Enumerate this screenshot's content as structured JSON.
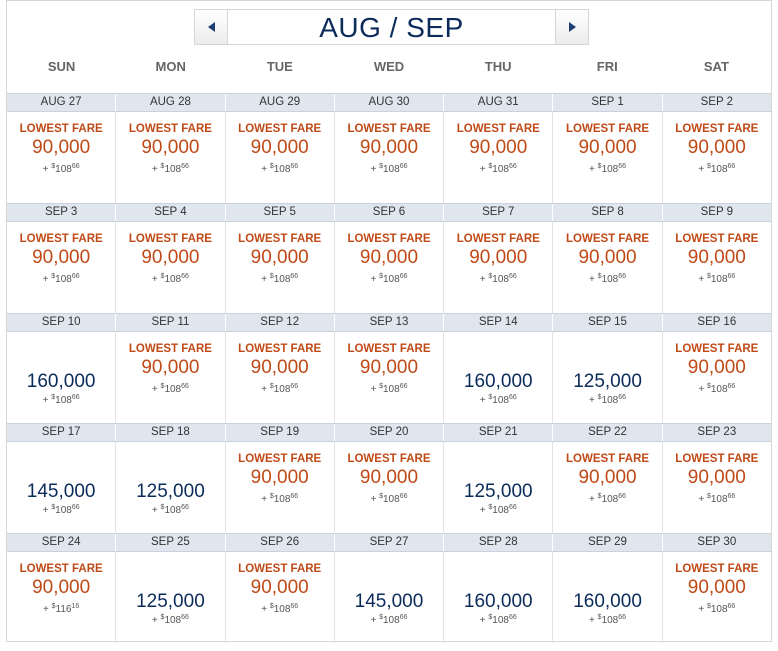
{
  "header": {
    "title": "AUG / SEP",
    "prev_icon": "chevron-left-icon",
    "next_icon": "chevron-right-icon"
  },
  "weekdays": [
    "SUN",
    "MON",
    "TUE",
    "WED",
    "THU",
    "FRI",
    "SAT"
  ],
  "lowest_label": "LOWEST FARE",
  "colors": {
    "lowest": "#c04a17",
    "regular": "#0b2b5b",
    "date_bar": "#dfe6ee"
  },
  "weeks": [
    {
      "dates": [
        "AUG 27",
        "AUG 28",
        "AUG 29",
        "AUG 30",
        "AUG 31",
        "SEP 1",
        "SEP 2"
      ],
      "days": [
        {
          "lowest": true,
          "miles": "90,000",
          "fee_int": "108",
          "fee_cents": "66"
        },
        {
          "lowest": true,
          "miles": "90,000",
          "fee_int": "108",
          "fee_cents": "66"
        },
        {
          "lowest": true,
          "miles": "90,000",
          "fee_int": "108",
          "fee_cents": "66"
        },
        {
          "lowest": true,
          "miles": "90,000",
          "fee_int": "108",
          "fee_cents": "66"
        },
        {
          "lowest": true,
          "miles": "90,000",
          "fee_int": "108",
          "fee_cents": "66"
        },
        {
          "lowest": true,
          "miles": "90,000",
          "fee_int": "108",
          "fee_cents": "66"
        },
        {
          "lowest": true,
          "miles": "90,000",
          "fee_int": "108",
          "fee_cents": "66"
        }
      ]
    },
    {
      "dates": [
        "SEP 3",
        "SEP 4",
        "SEP 5",
        "SEP 6",
        "SEP 7",
        "SEP 8",
        "SEP 9"
      ],
      "days": [
        {
          "lowest": true,
          "miles": "90,000",
          "fee_int": "108",
          "fee_cents": "66"
        },
        {
          "lowest": true,
          "miles": "90,000",
          "fee_int": "108",
          "fee_cents": "66"
        },
        {
          "lowest": true,
          "miles": "90,000",
          "fee_int": "108",
          "fee_cents": "66"
        },
        {
          "lowest": true,
          "miles": "90,000",
          "fee_int": "108",
          "fee_cents": "66"
        },
        {
          "lowest": true,
          "miles": "90,000",
          "fee_int": "108",
          "fee_cents": "66"
        },
        {
          "lowest": true,
          "miles": "90,000",
          "fee_int": "108",
          "fee_cents": "66"
        },
        {
          "lowest": true,
          "miles": "90,000",
          "fee_int": "108",
          "fee_cents": "66"
        }
      ]
    },
    {
      "dates": [
        "SEP 10",
        "SEP 11",
        "SEP 12",
        "SEP 13",
        "SEP 14",
        "SEP 15",
        "SEP 16"
      ],
      "days": [
        {
          "lowest": false,
          "miles": "160,000",
          "fee_int": "108",
          "fee_cents": "66"
        },
        {
          "lowest": true,
          "miles": "90,000",
          "fee_int": "108",
          "fee_cents": "66"
        },
        {
          "lowest": true,
          "miles": "90,000",
          "fee_int": "108",
          "fee_cents": "66"
        },
        {
          "lowest": true,
          "miles": "90,000",
          "fee_int": "108",
          "fee_cents": "66"
        },
        {
          "lowest": false,
          "miles": "160,000",
          "fee_int": "108",
          "fee_cents": "66"
        },
        {
          "lowest": false,
          "miles": "125,000",
          "fee_int": "108",
          "fee_cents": "66"
        },
        {
          "lowest": true,
          "miles": "90,000",
          "fee_int": "108",
          "fee_cents": "66"
        }
      ]
    },
    {
      "dates": [
        "SEP 17",
        "SEP 18",
        "SEP 19",
        "SEP 20",
        "SEP 21",
        "SEP 22",
        "SEP 23"
      ],
      "days": [
        {
          "lowest": false,
          "miles": "145,000",
          "fee_int": "108",
          "fee_cents": "66"
        },
        {
          "lowest": false,
          "miles": "125,000",
          "fee_int": "108",
          "fee_cents": "66"
        },
        {
          "lowest": true,
          "miles": "90,000",
          "fee_int": "108",
          "fee_cents": "66"
        },
        {
          "lowest": true,
          "miles": "90,000",
          "fee_int": "108",
          "fee_cents": "66"
        },
        {
          "lowest": false,
          "miles": "125,000",
          "fee_int": "108",
          "fee_cents": "66"
        },
        {
          "lowest": true,
          "miles": "90,000",
          "fee_int": "108",
          "fee_cents": "66"
        },
        {
          "lowest": true,
          "miles": "90,000",
          "fee_int": "108",
          "fee_cents": "66"
        }
      ]
    },
    {
      "dates": [
        "SEP 24",
        "SEP 25",
        "SEP 26",
        "SEP 27",
        "SEP 28",
        "SEP 29",
        "SEP 30"
      ],
      "days": [
        {
          "lowest": true,
          "miles": "90,000",
          "fee_int": "116",
          "fee_cents": "16"
        },
        {
          "lowest": false,
          "miles": "125,000",
          "fee_int": "108",
          "fee_cents": "66"
        },
        {
          "lowest": true,
          "miles": "90,000",
          "fee_int": "108",
          "fee_cents": "66"
        },
        {
          "lowest": false,
          "miles": "145,000",
          "fee_int": "108",
          "fee_cents": "66"
        },
        {
          "lowest": false,
          "miles": "160,000",
          "fee_int": "108",
          "fee_cents": "66"
        },
        {
          "lowest": false,
          "miles": "160,000",
          "fee_int": "108",
          "fee_cents": "66"
        },
        {
          "lowest": true,
          "miles": "90,000",
          "fee_int": "108",
          "fee_cents": "66"
        }
      ]
    }
  ]
}
